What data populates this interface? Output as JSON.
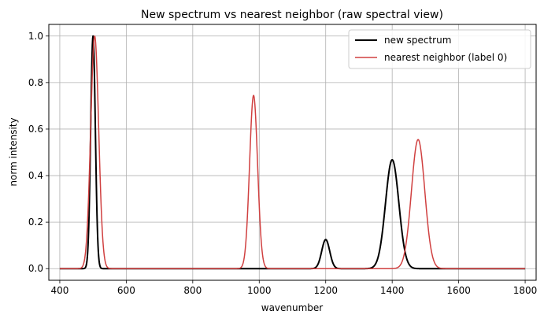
{
  "chart_data": {
    "type": "line",
    "title": "New spectrum vs nearest neighbor (raw spectral view)",
    "xlabel": "wavenumber",
    "ylabel": "norm intensity",
    "xlim": [
      367,
      1833
    ],
    "ylim": [
      -0.05,
      1.05
    ],
    "xticks": [
      400,
      600,
      800,
      1000,
      1200,
      1400,
      1600,
      1800
    ],
    "yticks": [
      0.0,
      0.2,
      0.4,
      0.6,
      0.8,
      1.0
    ],
    "xtick_labels": [
      "400",
      "600",
      "800",
      "1000",
      "1200",
      "1400",
      "1600",
      "1800"
    ],
    "ytick_labels": [
      "0.0",
      "0.2",
      "0.4",
      "0.6",
      "0.8",
      "1.0"
    ],
    "grid": true,
    "legend_position": "top-right",
    "x_range": [
      400,
      1800
    ],
    "series": [
      {
        "name": "new spectrum",
        "color": "#000000",
        "peaks": [
          {
            "center": 500,
            "height": 1.0,
            "width": 7
          },
          {
            "center": 1200,
            "height": 0.125,
            "width": 12
          },
          {
            "center": 1400,
            "height": 0.468,
            "width": 20
          }
        ]
      },
      {
        "name": "nearest neighbor (label 0)",
        "color": "#d04040",
        "peaks": [
          {
            "center": 505,
            "height": 1.0,
            "width": 12
          },
          {
            "center": 983,
            "height": 0.745,
            "width": 12
          },
          {
            "center": 1478,
            "height": 0.555,
            "width": 20
          }
        ]
      }
    ]
  }
}
